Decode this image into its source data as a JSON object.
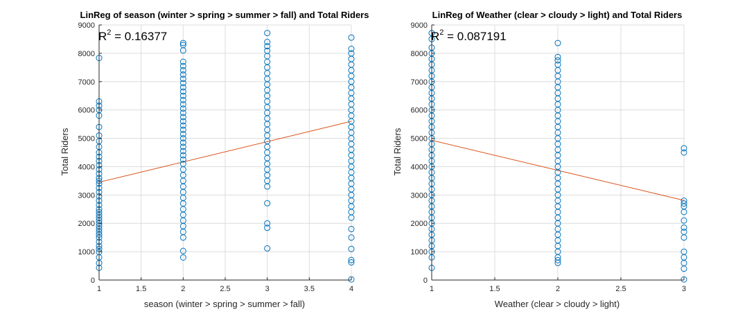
{
  "chart_data": [
    {
      "type": "scatter",
      "title": "LinReg of season (winter > spring > summer > fall) and Total Riders",
      "xlabel": "season (winter > spring > summer > fall)",
      "ylabel": "Total Riders",
      "xlim": [
        1,
        4
      ],
      "ylim": [
        0,
        9000
      ],
      "xticks": [
        "1",
        "1.5",
        "2",
        "2.5",
        "3",
        "3.5",
        "4"
      ],
      "yticks": [
        "0",
        "1000",
        "2000",
        "3000",
        "4000",
        "5000",
        "6000",
        "7000",
        "8000",
        "9000"
      ],
      "grid": true,
      "annotation": {
        "prefix": "R",
        "sup": "2",
        "text": " = 0.16377"
      },
      "fit_line": {
        "x": [
          1,
          4
        ],
        "y": [
          3450,
          5600
        ]
      },
      "series": [
        {
          "x": 1,
          "values": [
            431,
            600,
            800,
            986,
            1096,
            1200,
            1350,
            1500,
            1600,
            1700,
            1800,
            1900,
            2000,
            2100,
            2200,
            2300,
            2400,
            2500,
            2650,
            2800,
            2950,
            3100,
            3250,
            3400,
            3500,
            3600,
            3750,
            3900,
            4050,
            4200,
            4350,
            4500,
            4700,
            4900,
            5100,
            5400,
            5800,
            6000,
            6150,
            6300,
            7836
          ]
        },
        {
          "x": 2,
          "values": [
            795,
            1027,
            1500,
            1700,
            1900,
            2100,
            2300,
            2500,
            2700,
            2900,
            3100,
            3300,
            3500,
            3700,
            3900,
            4100,
            4250,
            4400,
            4550,
            4700,
            4850,
            5000,
            5150,
            5300,
            5450,
            5600,
            5750,
            5900,
            6050,
            6200,
            6350,
            6500,
            6650,
            6800,
            6950,
            7100,
            7250,
            7400,
            7550,
            7700,
            8100,
            8294,
            8362
          ]
        },
        {
          "x": 3,
          "values": [
            1115,
            1842,
            2000,
            2710,
            3300,
            3500,
            3700,
            3900,
            4100,
            4300,
            4500,
            4700,
            4900,
            5100,
            5300,
            5500,
            5700,
            5900,
            6100,
            6300,
            6500,
            6700,
            6900,
            7100,
            7300,
            7500,
            7700,
            7900,
            8090,
            8250,
            8400,
            8714
          ]
        },
        {
          "x": 4,
          "values": [
            22,
            623,
            705,
            1096,
            1500,
            1800,
            2200,
            2400,
            2600,
            2800,
            3000,
            3200,
            3400,
            3600,
            3800,
            4000,
            4200,
            4400,
            4600,
            4800,
            5000,
            5200,
            5400,
            5600,
            5800,
            6000,
            6200,
            6400,
            6600,
            6800,
            7000,
            7200,
            7400,
            7600,
            7800,
            8000,
            8156,
            8555
          ]
        }
      ]
    },
    {
      "type": "scatter",
      "title": "LinReg of Weather (clear > cloudy > light) and Total Riders",
      "xlabel": "Weather (clear > cloudy > light)",
      "ylabel": "Total Riders",
      "xlim": [
        1,
        3
      ],
      "ylim": [
        0,
        9000
      ],
      "xticks": [
        "1",
        "1.5",
        "2",
        "2.5",
        "3"
      ],
      "yticks": [
        "0",
        "1000",
        "2000",
        "3000",
        "4000",
        "5000",
        "6000",
        "7000",
        "8000",
        "9000"
      ],
      "grid": true,
      "annotation": {
        "prefix": "R",
        "sup": "2",
        "text": " = 0.087191"
      },
      "fit_line": {
        "x": [
          1,
          3
        ],
        "y": [
          4930,
          2810
        ]
      },
      "series": [
        {
          "x": 1,
          "values": [
            431,
            800,
            1000,
            1200,
            1400,
            1600,
            1800,
            2000,
            2200,
            2400,
            2600,
            2800,
            3000,
            3200,
            3400,
            3600,
            3800,
            4000,
            4200,
            4400,
            4600,
            4800,
            5000,
            5200,
            5400,
            5600,
            5800,
            6000,
            6200,
            6400,
            6600,
            6800,
            7000,
            7200,
            7400,
            7600,
            7800,
            8000,
            8200,
            8500,
            8714
          ]
        },
        {
          "x": 2,
          "values": [
            605,
            700,
            800,
            1000,
            1200,
            1400,
            1600,
            1800,
            2000,
            2200,
            2400,
            2600,
            2800,
            3000,
            3200,
            3400,
            3600,
            3800,
            4000,
            4200,
            4400,
            4600,
            4800,
            5000,
            5200,
            5400,
            5600,
            5800,
            6000,
            6200,
            6400,
            6600,
            6800,
            7000,
            7200,
            7400,
            7600,
            7750,
            7870,
            8362
          ]
        },
        {
          "x": 3,
          "values": [
            22,
            400,
            600,
            800,
            1000,
            1500,
            1700,
            1850,
            2100,
            2400,
            2600,
            2700,
            2800,
            4500,
            4650
          ]
        }
      ]
    }
  ],
  "colors": {
    "points": "#0072bd",
    "fit": "#d95319",
    "axis": "#262626",
    "grid": "#dcdcdc"
  }
}
